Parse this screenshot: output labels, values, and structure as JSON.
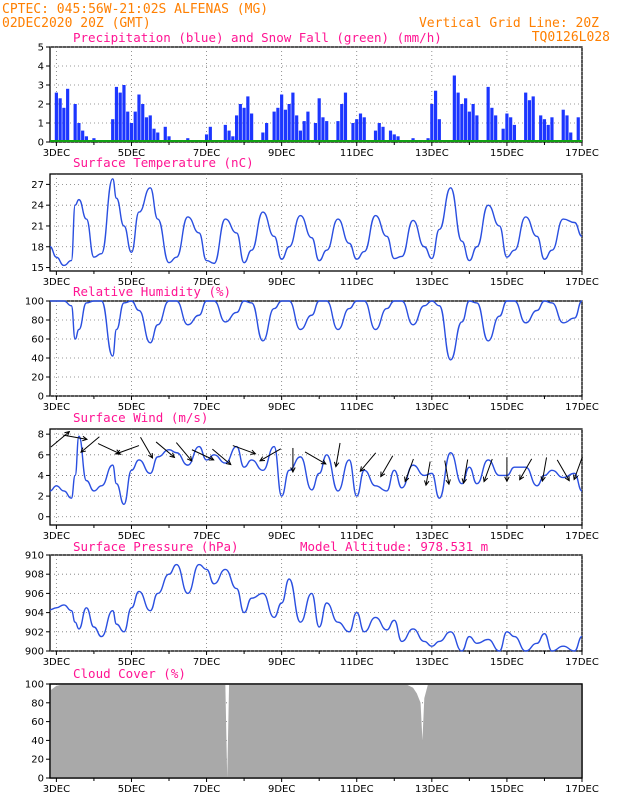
{
  "header": {
    "left_line1": "CPTEC:  045:56W-21:02S  ALFENAS (MG)",
    "left_line2": "02DEC2020 20Z (GMT)",
    "right_line1": "Vertical Grid Line: 20Z",
    "right_line2": "TQ0126L028"
  },
  "colors": {
    "header": "#ff7f00",
    "title": "#ff1493",
    "line": "#2a4fe0",
    "precip": "#1c36ff",
    "snow": "#13a013",
    "cloud": "#a9a9a9"
  },
  "x_axis": {
    "day_start": 2.83,
    "day_end": 17.0,
    "ticks": [
      3,
      5,
      7,
      9,
      11,
      13,
      15,
      17
    ],
    "tick_labels": [
      "3DEC",
      "5DEC",
      "7DEC",
      "9DEC",
      "11DEC",
      "13DEC",
      "15DEC",
      "17DEC"
    ]
  },
  "chart_data": [
    {
      "type": "bar",
      "title": "Precipitation (blue) and Snow Fall (green) (mm/h)",
      "ylim": [
        0,
        5
      ],
      "yticks": [
        0,
        1,
        2,
        3,
        4,
        5
      ],
      "series": [
        {
          "name": "Precipitation",
          "color": "#1c36ff",
          "x": [
            3.0,
            3.1,
            3.2,
            3.3,
            3.5,
            3.6,
            3.7,
            3.8,
            4.0,
            4.5,
            4.6,
            4.7,
            4.8,
            4.9,
            5.0,
            5.1,
            5.2,
            5.3,
            5.4,
            5.5,
            5.6,
            5.7,
            5.9,
            6.0,
            6.5,
            6.9,
            7.0,
            7.1,
            7.5,
            7.6,
            7.7,
            7.8,
            7.9,
            8.0,
            8.1,
            8.2,
            8.5,
            8.6,
            8.8,
            8.9,
            9.0,
            9.1,
            9.2,
            9.3,
            9.4,
            9.5,
            9.6,
            9.7,
            9.9,
            10.0,
            10.1,
            10.2,
            10.5,
            10.6,
            10.7,
            10.9,
            11.0,
            11.1,
            11.2,
            11.5,
            11.6,
            11.7,
            11.9,
            12.0,
            12.1,
            12.5,
            12.9,
            13.0,
            13.1,
            13.2,
            13.6,
            13.7,
            13.8,
            13.9,
            14.0,
            14.1,
            14.2,
            14.5,
            14.6,
            14.7,
            14.9,
            15.0,
            15.1,
            15.2,
            15.5,
            15.6,
            15.7,
            15.9,
            16.0,
            16.1,
            16.2,
            16.5,
            16.6,
            16.7,
            16.9
          ],
          "values": [
            2.6,
            2.3,
            1.8,
            2.8,
            2.0,
            1.0,
            0.6,
            0.3,
            0.2,
            1.2,
            2.9,
            2.6,
            3.0,
            1.6,
            1.0,
            1.6,
            2.5,
            2.0,
            1.3,
            1.4,
            0.7,
            0.5,
            0.8,
            0.3,
            0.2,
            0.1,
            0.4,
            0.8,
            0.9,
            0.6,
            0.3,
            1.4,
            2.0,
            1.8,
            2.4,
            1.5,
            0.5,
            1.0,
            1.6,
            1.8,
            2.5,
            1.7,
            2.0,
            2.6,
            1.4,
            0.6,
            1.1,
            1.6,
            1.0,
            2.3,
            1.3,
            1.1,
            1.1,
            2.0,
            2.6,
            1.0,
            1.2,
            1.5,
            1.3,
            0.6,
            1.0,
            0.8,
            0.6,
            0.4,
            0.3,
            0.2,
            0.2,
            2.0,
            2.7,
            1.2,
            3.5,
            2.6,
            2.0,
            2.3,
            1.6,
            2.0,
            1.4,
            2.9,
            1.8,
            1.4,
            0.7,
            1.5,
            1.3,
            0.9,
            2.6,
            2.2,
            2.4,
            1.4,
            1.2,
            0.9,
            1.3,
            1.7,
            1.4,
            0.5,
            1.3
          ]
        },
        {
          "name": "Snow Fall",
          "color": "#13a013",
          "values": [
            0
          ]
        }
      ]
    },
    {
      "type": "line",
      "title": "Surface Temperature (nC)",
      "ylim": [
        14.5,
        28.5
      ],
      "yticks": [
        15,
        18,
        21,
        24,
        27
      ],
      "x": [
        2.83,
        3.0,
        3.2,
        3.4,
        3.5,
        3.6,
        3.8,
        4.0,
        4.2,
        4.5,
        4.6,
        4.8,
        5.0,
        5.2,
        5.5,
        5.7,
        6.0,
        6.2,
        6.5,
        6.8,
        7.0,
        7.2,
        7.5,
        7.8,
        8.0,
        8.2,
        8.5,
        8.8,
        9.0,
        9.2,
        9.5,
        9.8,
        10.0,
        10.2,
        10.5,
        10.8,
        11.0,
        11.2,
        11.5,
        11.8,
        12.0,
        12.2,
        12.5,
        12.8,
        13.0,
        13.2,
        13.5,
        13.8,
        14.0,
        14.2,
        14.5,
        14.8,
        15.0,
        15.2,
        15.5,
        15.8,
        16.0,
        16.2,
        16.5,
        16.8,
        17.0
      ],
      "values": [
        18.0,
        16.5,
        15.3,
        16.0,
        24.0,
        24.8,
        22.0,
        16.5,
        17.0,
        27.8,
        25.0,
        21.0,
        17.2,
        23.0,
        26.5,
        22.0,
        15.7,
        16.5,
        22.3,
        20.0,
        16.0,
        15.6,
        22.0,
        20.0,
        15.7,
        17.5,
        23.0,
        19.5,
        16.2,
        18.0,
        22.5,
        19.3,
        16.0,
        17.5,
        22.0,
        18.5,
        16.2,
        17.3,
        22.5,
        19.5,
        16.3,
        16.6,
        21.8,
        18.0,
        16.3,
        20.5,
        26.5,
        18.8,
        16.0,
        18.0,
        24.0,
        21.0,
        16.5,
        17.5,
        22.3,
        19.5,
        16.2,
        17.5,
        22.0,
        21.5,
        19.5
      ]
    },
    {
      "type": "line",
      "title": "Relative Humidity (%)",
      "ylim": [
        0,
        100
      ],
      "yticks": [
        0,
        20,
        40,
        60,
        80,
        100
      ],
      "x": [
        2.83,
        3.0,
        3.2,
        3.4,
        3.5,
        3.6,
        3.8,
        4.0,
        4.2,
        4.5,
        4.6,
        4.8,
        5.0,
        5.2,
        5.5,
        5.7,
        6.0,
        6.2,
        6.5,
        6.8,
        7.0,
        7.2,
        7.5,
        7.8,
        8.0,
        8.2,
        8.5,
        8.8,
        9.0,
        9.2,
        9.5,
        9.8,
        10.0,
        10.2,
        10.5,
        10.8,
        11.0,
        11.2,
        11.5,
        11.8,
        12.0,
        12.2,
        12.5,
        12.8,
        13.0,
        13.2,
        13.5,
        13.8,
        14.0,
        14.2,
        14.5,
        14.8,
        15.0,
        15.2,
        15.5,
        15.8,
        16.0,
        16.2,
        16.5,
        16.8,
        17.0
      ],
      "values": [
        100,
        100,
        100,
        95,
        60,
        70,
        98,
        100,
        100,
        42,
        70,
        98,
        100,
        90,
        56,
        75,
        100,
        100,
        75,
        85,
        100,
        100,
        78,
        88,
        100,
        98,
        58,
        92,
        100,
        100,
        70,
        85,
        100,
        100,
        70,
        92,
        100,
        100,
        70,
        92,
        100,
        100,
        75,
        95,
        100,
        95,
        38,
        78,
        100,
        98,
        58,
        84,
        100,
        100,
        77,
        90,
        100,
        98,
        77,
        82,
        100
      ]
    },
    {
      "type": "line",
      "title": "Surface Wind (m/s)",
      "ylim": [
        -0.8,
        8.5
      ],
      "yticks": [
        0,
        2,
        4,
        6,
        8
      ],
      "x": [
        2.83,
        3.0,
        3.2,
        3.4,
        3.5,
        3.6,
        3.8,
        4.0,
        4.2,
        4.5,
        4.6,
        4.8,
        5.0,
        5.2,
        5.5,
        5.7,
        6.0,
        6.2,
        6.5,
        6.8,
        7.0,
        7.2,
        7.5,
        7.8,
        8.0,
        8.2,
        8.5,
        8.8,
        9.0,
        9.2,
        9.5,
        9.8,
        10.0,
        10.2,
        10.5,
        10.8,
        11.0,
        11.2,
        11.5,
        11.8,
        12.0,
        12.2,
        12.5,
        12.8,
        13.0,
        13.2,
        13.5,
        13.8,
        14.0,
        14.2,
        14.5,
        14.8,
        15.0,
        15.2,
        15.5,
        15.8,
        16.0,
        16.2,
        16.5,
        16.8,
        17.0
      ],
      "values": [
        2.5,
        3.0,
        2.5,
        1.8,
        4.0,
        7.8,
        3.5,
        2.5,
        3.0,
        5.0,
        3.2,
        1.2,
        4.5,
        5.5,
        4.2,
        5.8,
        6.5,
        6.2,
        5.0,
        6.8,
        5.5,
        6.0,
        5.2,
        6.8,
        4.8,
        5.5,
        4.5,
        6.8,
        2.0,
        4.5,
        5.8,
        2.6,
        4.2,
        6.0,
        2.5,
        5.5,
        2.0,
        4.5,
        3.0,
        2.5,
        4.5,
        2.8,
        5.0,
        4.0,
        4.2,
        1.8,
        6.2,
        3.2,
        4.8,
        3.2,
        5.5,
        4.0,
        4.0,
        4.8,
        4.8,
        3.0,
        4.0,
        4.5,
        3.8,
        4.2,
        2.5
      ],
      "arrows": [
        [
          3.1,
          7.5,
          -40
        ],
        [
          3.5,
          7.7,
          10
        ],
        [
          3.9,
          7.0,
          140
        ],
        [
          4.4,
          6.6,
          25
        ],
        [
          4.9,
          6.5,
          160
        ],
        [
          5.4,
          6.7,
          60
        ],
        [
          5.9,
          6.5,
          40
        ],
        [
          6.4,
          6.3,
          50
        ],
        [
          6.9,
          6.0,
          25
        ],
        [
          7.4,
          5.8,
          40
        ],
        [
          8.0,
          6.5,
          20
        ],
        [
          8.7,
          6.0,
          150
        ],
        [
          9.3,
          5.5,
          90
        ],
        [
          9.9,
          5.7,
          30
        ],
        [
          10.5,
          6.0,
          100
        ],
        [
          11.3,
          5.3,
          130
        ],
        [
          11.8,
          4.9,
          120
        ],
        [
          12.4,
          4.5,
          110
        ],
        [
          12.9,
          4.2,
          100
        ],
        [
          13.4,
          4.3,
          80
        ],
        [
          13.9,
          4.4,
          100
        ],
        [
          14.5,
          4.5,
          110
        ],
        [
          15.0,
          4.6,
          90
        ],
        [
          15.5,
          4.6,
          120
        ],
        [
          16.0,
          4.6,
          100
        ],
        [
          16.5,
          4.5,
          60
        ],
        [
          16.9,
          4.7,
          110
        ]
      ]
    },
    {
      "type": "line",
      "title": "Surface Pressure (hPa)",
      "annotation": "Model Altitude: 978.531 m",
      "ylim": [
        900,
        910
      ],
      "yticks": [
        900,
        902,
        904,
        906,
        908,
        910
      ],
      "x": [
        2.83,
        3.0,
        3.2,
        3.4,
        3.5,
        3.6,
        3.8,
        4.0,
        4.2,
        4.5,
        4.6,
        4.8,
        5.0,
        5.2,
        5.5,
        5.7,
        6.0,
        6.2,
        6.5,
        6.8,
        7.0,
        7.2,
        7.5,
        7.8,
        8.0,
        8.2,
        8.5,
        8.8,
        9.0,
        9.2,
        9.5,
        9.8,
        10.0,
        10.2,
        10.5,
        10.8,
        11.0,
        11.2,
        11.5,
        11.8,
        12.0,
        12.2,
        12.5,
        12.8,
        13.0,
        13.2,
        13.5,
        13.8,
        14.0,
        14.2,
        14.5,
        14.8,
        15.0,
        15.2,
        15.5,
        15.8,
        16.0,
        16.2,
        16.5,
        16.8,
        17.0
      ],
      "values": [
        904.3,
        904.5,
        904.8,
        904.2,
        903.0,
        902.3,
        904.5,
        902.5,
        901.5,
        904.2,
        902.8,
        902.0,
        904.5,
        906.2,
        904.2,
        906.0,
        908.0,
        909.0,
        906.0,
        909.0,
        908.5,
        907.0,
        908.5,
        906.5,
        904.0,
        905.5,
        906.0,
        903.5,
        905.0,
        907.5,
        903.0,
        906.0,
        902.5,
        905.0,
        903.0,
        902.0,
        904.0,
        902.0,
        903.5,
        902.2,
        903.2,
        901.0,
        902.3,
        901.0,
        900.5,
        901.0,
        902.0,
        899.8,
        901.5,
        900.8,
        901.2,
        900.0,
        902.0,
        901.5,
        899.5,
        900.8,
        901.8,
        900.0,
        900.5,
        899.8,
        901.5
      ]
    },
    {
      "type": "area",
      "title": "Cloud Cover (%)",
      "ylim": [
        0,
        100
      ],
      "yticks": [
        0,
        20,
        40,
        60,
        80,
        100
      ],
      "x": [
        2.83,
        3.0,
        3.2,
        3.5,
        4.0,
        4.5,
        5.0,
        5.5,
        6.0,
        6.5,
        7.0,
        7.5,
        7.55,
        7.6,
        8.0,
        8.5,
        9.0,
        9.5,
        10.0,
        10.5,
        11.0,
        11.5,
        12.0,
        12.3,
        12.5,
        12.6,
        12.7,
        12.75,
        12.8,
        12.9,
        13.0,
        13.5,
        14.0,
        14.5,
        15.0,
        15.5,
        16.0,
        16.5,
        17.0
      ],
      "values": [
        93,
        98,
        100,
        100,
        100,
        100,
        100,
        100,
        100,
        100,
        100,
        100,
        0,
        100,
        100,
        100,
        100,
        100,
        100,
        100,
        100,
        100,
        100,
        100,
        96,
        90,
        80,
        40,
        85,
        100,
        100,
        100,
        100,
        100,
        100,
        100,
        100,
        100,
        100
      ]
    }
  ]
}
